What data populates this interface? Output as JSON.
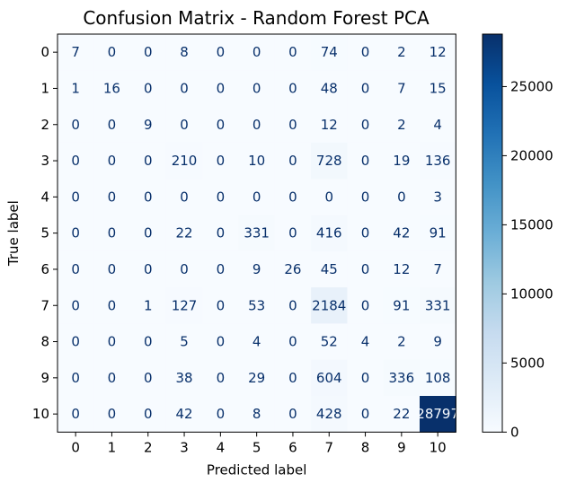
{
  "chart_data": {
    "type": "heatmap",
    "title": "Confusion Matrix - Random Forest PCA",
    "xlabel": "Predicted label",
    "ylabel": "True label",
    "x_categories": [
      "0",
      "1",
      "2",
      "3",
      "4",
      "5",
      "6",
      "7",
      "8",
      "9",
      "10"
    ],
    "y_categories": [
      "0",
      "1",
      "2",
      "3",
      "4",
      "5",
      "6",
      "7",
      "8",
      "9",
      "10"
    ],
    "values": [
      [
        7,
        0,
        0,
        8,
        0,
        0,
        0,
        74,
        0,
        2,
        12
      ],
      [
        1,
        16,
        0,
        0,
        0,
        0,
        0,
        48,
        0,
        7,
        15
      ],
      [
        0,
        0,
        9,
        0,
        0,
        0,
        0,
        12,
        0,
        2,
        4
      ],
      [
        0,
        0,
        0,
        210,
        0,
        10,
        0,
        728,
        0,
        19,
        136
      ],
      [
        0,
        0,
        0,
        0,
        0,
        0,
        0,
        0,
        0,
        0,
        3
      ],
      [
        0,
        0,
        0,
        22,
        0,
        331,
        0,
        416,
        0,
        42,
        91
      ],
      [
        0,
        0,
        0,
        0,
        0,
        9,
        26,
        45,
        0,
        12,
        7
      ],
      [
        0,
        0,
        1,
        127,
        0,
        53,
        0,
        2184,
        0,
        91,
        331
      ],
      [
        0,
        0,
        0,
        5,
        0,
        4,
        0,
        52,
        4,
        2,
        9
      ],
      [
        0,
        0,
        0,
        38,
        0,
        29,
        0,
        604,
        0,
        336,
        108
      ],
      [
        0,
        0,
        0,
        42,
        0,
        8,
        0,
        428,
        0,
        22,
        28797
      ]
    ],
    "colormap": "Blues",
    "vmin": 0,
    "vmax": 28797,
    "colorbar_ticks": [
      0,
      5000,
      10000,
      15000,
      20000,
      25000
    ],
    "colorbar_tick_labels": [
      "0",
      "5000",
      "10000",
      "15000",
      "20000",
      "25000"
    ],
    "colorbar_low_color": "#f7fbff",
    "colorbar_high_color": "#08306b",
    "text_dark_color": "#08306b",
    "text_light_color": "#f7fbff"
  }
}
